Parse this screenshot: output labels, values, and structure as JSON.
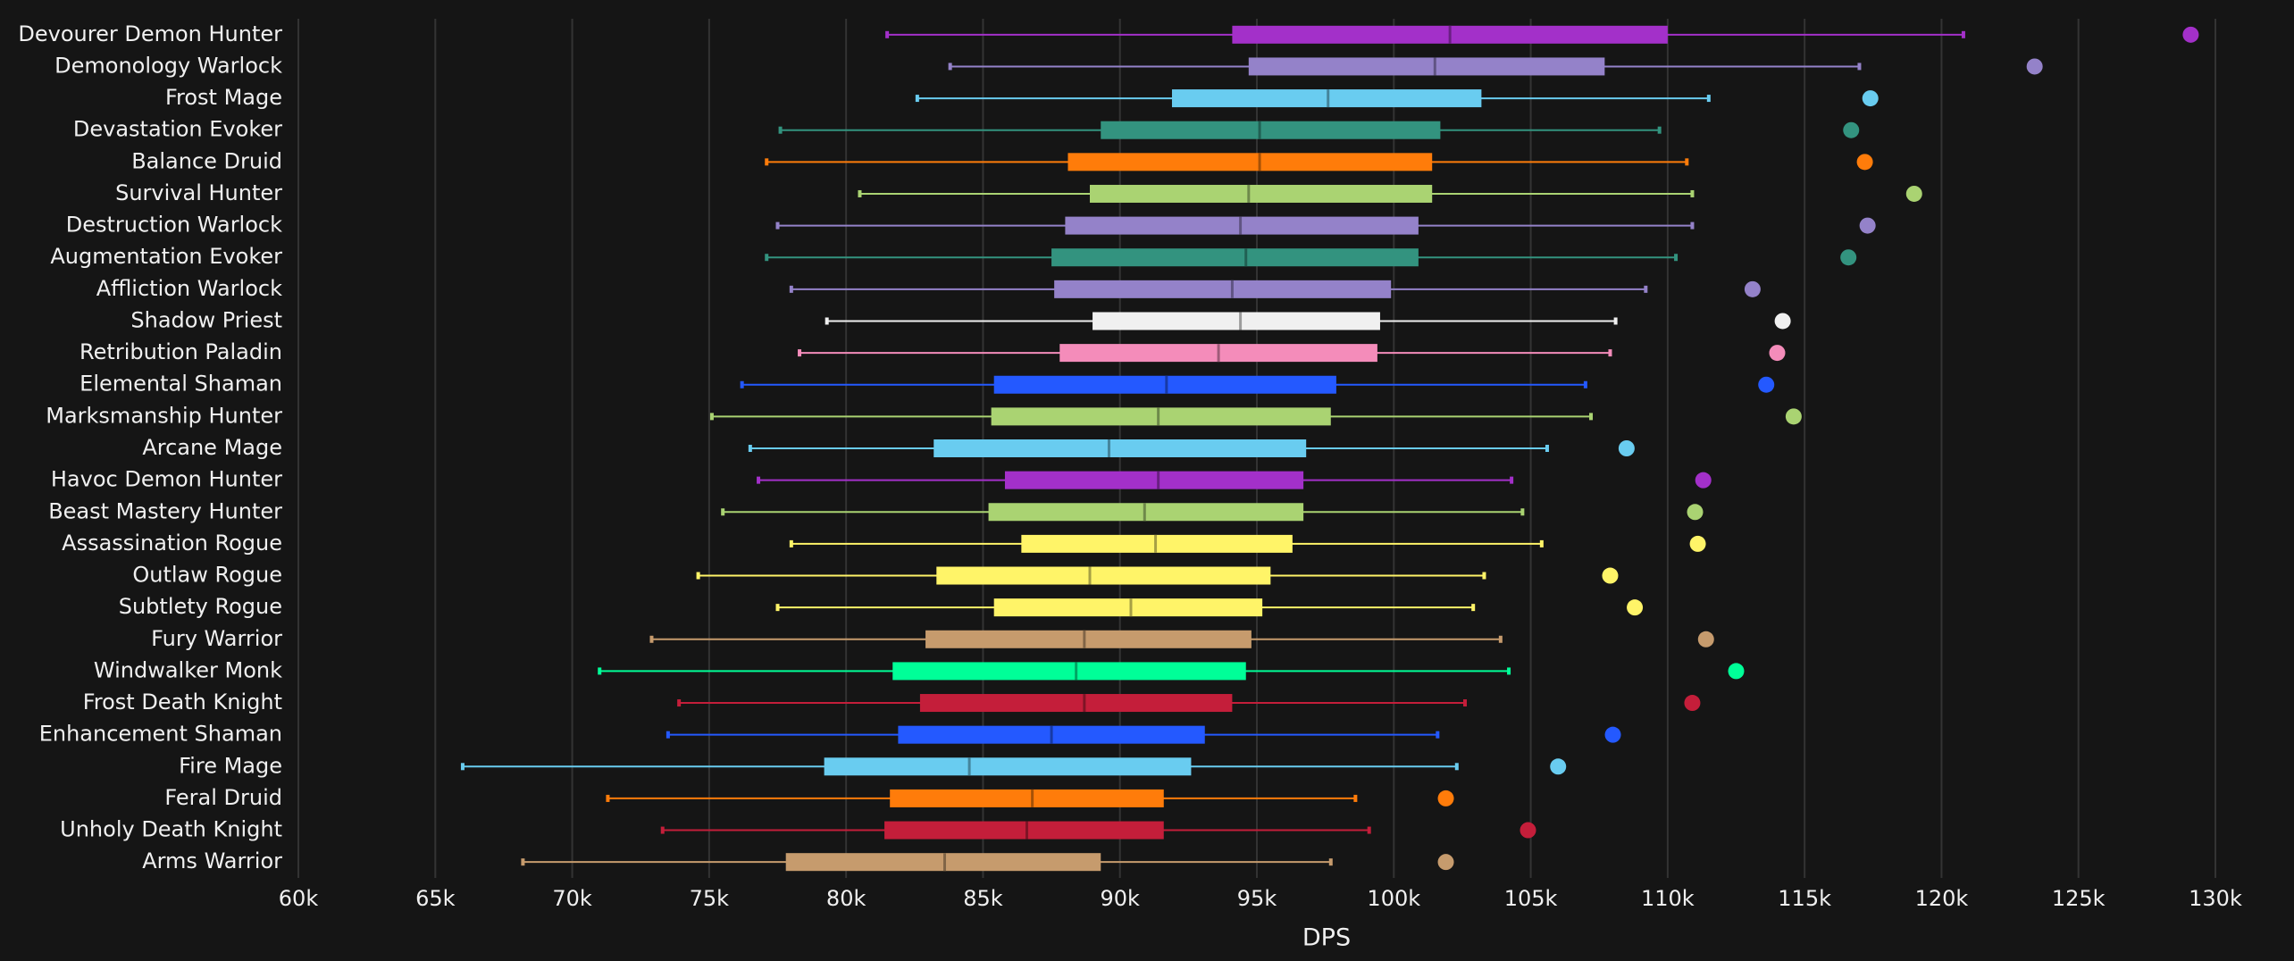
{
  "chart_data": {
    "type": "box",
    "x_label": "DPS",
    "categories": [
      "Devourer Demon Hunter",
      "Demonology Warlock",
      "Frost Mage",
      "Devastation Evoker",
      "Balance Druid",
      "Survival Hunter",
      "Destruction Warlock",
      "Augmentation Evoker",
      "Affliction Warlock",
      "Shadow Priest",
      "Retribution Paladin",
      "Elemental Shaman",
      "Marksmanship Hunter",
      "Arcane Mage",
      "Havoc Demon Hunter",
      "Beast Mastery Hunter",
      "Assassination Rogue",
      "Outlaw Rogue",
      "Subtlety Rogue",
      "Fury Warrior",
      "Windwalker Monk",
      "Frost Death Knight",
      "Enhancement Shaman",
      "Fire Mage",
      "Feral Druid",
      "Unholy Death Knight",
      "Arms Warrior"
    ],
    "colors": [
      "#a330c9",
      "#9482c9",
      "#69ccf0",
      "#33937f",
      "#ff7c0a",
      "#aad372",
      "#9482c9",
      "#33937f",
      "#9482c9",
      "#f0f0f0",
      "#f48cba",
      "#2459ff",
      "#aad372",
      "#69ccf0",
      "#a330c9",
      "#aad372",
      "#fff468",
      "#fff468",
      "#fff468",
      "#c69b6d",
      "#00ff98",
      "#c41e3a",
      "#2459ff",
      "#69ccf0",
      "#ff7c0a",
      "#c41e3a",
      "#c69b6d"
    ],
    "whisker_low": [
      81500,
      83800,
      82600,
      77600,
      77100,
      80500,
      77500,
      77100,
      78000,
      79300,
      78300,
      76200,
      75100,
      76500,
      76800,
      75500,
      78000,
      74600,
      77500,
      72900,
      71000,
      73900,
      73500,
      66000,
      71300,
      73300,
      68200
    ],
    "q1": [
      94100,
      94700,
      91900,
      89300,
      88100,
      88900,
      88000,
      87500,
      87600,
      89000,
      87800,
      85400,
      85300,
      83200,
      85800,
      85200,
      86400,
      83300,
      85400,
      82900,
      81700,
      82700,
      81900,
      79200,
      81600,
      81400,
      77800
    ],
    "median": [
      102050,
      101500,
      97600,
      95100,
      95100,
      94700,
      94400,
      94600,
      94100,
      94400,
      93600,
      91700,
      91400,
      89600,
      91400,
      90900,
      91300,
      88900,
      90400,
      88700,
      88400,
      88700,
      87500,
      84500,
      86800,
      86600,
      83600
    ],
    "q3": [
      110000,
      107700,
      103200,
      101700,
      101400,
      101400,
      100900,
      100900,
      99900,
      99500,
      99400,
      97900,
      97700,
      96800,
      96700,
      96700,
      96300,
      95500,
      95200,
      94800,
      94600,
      94100,
      93100,
      92600,
      91600,
      91600,
      89300
    ],
    "whisker_high": [
      120800,
      117000,
      111500,
      109700,
      110700,
      110900,
      110900,
      110300,
      109200,
      108100,
      107900,
      107000,
      107200,
      105600,
      104300,
      104700,
      105400,
      103300,
      102900,
      103900,
      104200,
      102600,
      101600,
      102300,
      98600,
      99100,
      97700
    ],
    "outlier": [
      129100,
      123400,
      117400,
      116700,
      117200,
      119000,
      117300,
      116600,
      113100,
      114200,
      114000,
      113600,
      114600,
      108500,
      111300,
      111000,
      111100,
      107900,
      108800,
      111400,
      112500,
      110900,
      108000,
      106000,
      101900,
      104900,
      101900
    ],
    "xlim": [
      60000,
      130000
    ],
    "xticks": [
      {
        "value": 60000,
        "label": "60k"
      },
      {
        "value": 65000,
        "label": "65k"
      },
      {
        "value": 70000,
        "label": "70k"
      },
      {
        "value": 75000,
        "label": "75k"
      },
      {
        "value": 80000,
        "label": "80k"
      },
      {
        "value": 85000,
        "label": "85k"
      },
      {
        "value": 90000,
        "label": "90k"
      },
      {
        "value": 95000,
        "label": "95k"
      },
      {
        "value": 100000,
        "label": "100k"
      },
      {
        "value": 105000,
        "label": "105k"
      },
      {
        "value": 110000,
        "label": "110k"
      },
      {
        "value": 115000,
        "label": "115k"
      },
      {
        "value": 120000,
        "label": "120k"
      },
      {
        "value": 125000,
        "label": "125k"
      },
      {
        "value": 130000,
        "label": "130k"
      }
    ],
    "grid": true
  }
}
